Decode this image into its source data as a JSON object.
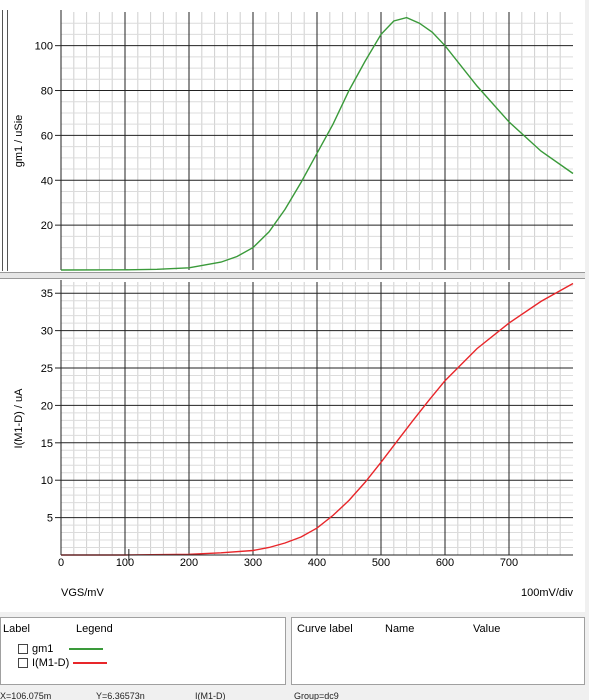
{
  "chart_data": [
    {
      "type": "line",
      "ylabel": "gm1 / uSie",
      "xlim": [
        0,
        800
      ],
      "ylim": [
        0,
        115
      ],
      "yticks": [
        20,
        40,
        60,
        80,
        100
      ],
      "grid": true,
      "series": [
        {
          "name": "gm1",
          "color": "#3a9a3a",
          "x": [
            0,
            100,
            150,
            200,
            250,
            275,
            300,
            325,
            350,
            375,
            400,
            425,
            450,
            475,
            500,
            520,
            540,
            560,
            580,
            600,
            650,
            700,
            750,
            800
          ],
          "y": [
            0,
            0.1,
            0.3,
            1,
            3.5,
            6,
            10,
            17,
            27,
            39,
            52,
            65,
            80,
            93,
            105,
            111,
            112.5,
            110,
            106,
            100,
            82,
            66,
            53,
            43
          ]
        }
      ]
    },
    {
      "type": "line",
      "xlabel": "VGS/mV",
      "ylabel": "I(M1-D) / uA",
      "xlim": [
        0,
        800
      ],
      "ylim": [
        0,
        36.5
      ],
      "xticks": [
        0,
        100,
        200,
        300,
        400,
        500,
        600,
        700
      ],
      "yticks": [
        5,
        10,
        15,
        20,
        25,
        30,
        35
      ],
      "grid": true,
      "series": [
        {
          "name": "I(M1-D)",
          "color": "#e8262a",
          "x": [
            0,
            100,
            200,
            250,
            300,
            325,
            350,
            375,
            400,
            425,
            450,
            475,
            500,
            525,
            550,
            575,
            600,
            650,
            700,
            750,
            800
          ],
          "y": [
            0,
            0,
            0.1,
            0.3,
            0.6,
            1,
            1.6,
            2.4,
            3.6,
            5.3,
            7.3,
            9.7,
            12.4,
            15.2,
            18,
            20.7,
            23.3,
            27.6,
            31,
            33.9,
            36.3
          ]
        }
      ]
    }
  ],
  "plot": {
    "x_div_label": "100mV/div"
  },
  "legend_panel": {
    "col_label": "Label",
    "col_legend": "Legend",
    "items": [
      {
        "label": "gm1",
        "color": "#3a9a3a"
      },
      {
        "label": "I(M1-D)",
        "color": "#e8262a"
      }
    ]
  },
  "curve_panel": {
    "col_curve_label": "Curve label",
    "col_name": "Name",
    "col_value": "Value"
  },
  "status_bar": {
    "x": "X=106.075m",
    "y": "Y=6.36573n",
    "trace": "I(M1-D)",
    "group": "Group=dc9"
  }
}
